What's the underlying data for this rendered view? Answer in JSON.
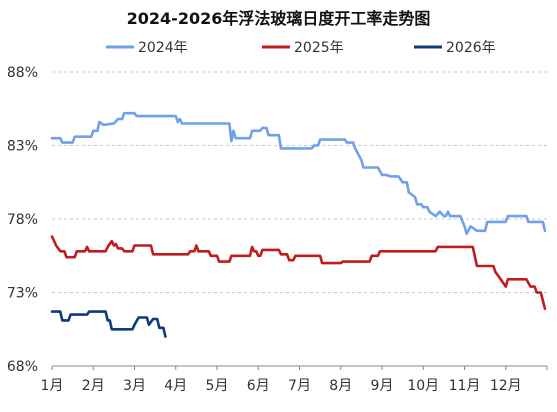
{
  "chart_data": {
    "type": "line",
    "title": "2024-2026年浮法玻璃日度开工率走势图",
    "x_ticks": [
      "1月",
      "2月",
      "3月",
      "4月",
      "5月",
      "6月",
      "7月",
      "8月",
      "9月",
      "10月",
      "11月",
      "12月"
    ],
    "y_ticks": [
      "68%",
      "73%",
      "78%",
      "83%",
      "88%"
    ],
    "ylim": [
      68,
      88
    ],
    "xlim": [
      1,
      13
    ],
    "grid": "horizontal dashed",
    "legend": "top",
    "series": [
      {
        "name": "2024年",
        "color": "#6fa1e8",
        "points": [
          [
            1.0,
            83.5
          ],
          [
            1.2,
            83.5
          ],
          [
            1.25,
            83.2
          ],
          [
            1.5,
            83.2
          ],
          [
            1.55,
            83.6
          ],
          [
            1.95,
            83.6
          ],
          [
            2.0,
            84.0
          ],
          [
            2.1,
            84.0
          ],
          [
            2.15,
            84.6
          ],
          [
            2.25,
            84.4
          ],
          [
            2.5,
            84.5
          ],
          [
            2.6,
            84.8
          ],
          [
            2.7,
            84.8
          ],
          [
            2.75,
            85.2
          ],
          [
            3.0,
            85.2
          ],
          [
            3.05,
            85.0
          ],
          [
            4.0,
            85.0
          ],
          [
            4.05,
            84.6
          ],
          [
            4.1,
            84.8
          ],
          [
            4.15,
            84.5
          ],
          [
            5.3,
            84.5
          ],
          [
            5.35,
            83.3
          ],
          [
            5.4,
            84.0
          ],
          [
            5.45,
            83.5
          ],
          [
            5.8,
            83.5
          ],
          [
            5.85,
            84.0
          ],
          [
            6.05,
            84.0
          ],
          [
            6.1,
            84.2
          ],
          [
            6.2,
            84.2
          ],
          [
            6.25,
            83.7
          ],
          [
            6.5,
            83.7
          ],
          [
            6.55,
            82.8
          ],
          [
            7.3,
            82.8
          ],
          [
            7.35,
            83.0
          ],
          [
            7.45,
            83.0
          ],
          [
            7.5,
            83.4
          ],
          [
            8.1,
            83.4
          ],
          [
            8.15,
            83.2
          ],
          [
            8.3,
            83.2
          ],
          [
            8.35,
            82.8
          ],
          [
            8.5,
            82.0
          ],
          [
            8.55,
            81.5
          ],
          [
            8.9,
            81.5
          ],
          [
            9.0,
            81.0
          ],
          [
            9.1,
            81.0
          ],
          [
            9.2,
            80.9
          ],
          [
            9.4,
            80.9
          ],
          [
            9.5,
            80.5
          ],
          [
            9.6,
            80.5
          ],
          [
            9.65,
            79.8
          ],
          [
            9.8,
            79.5
          ],
          [
            9.85,
            79.0
          ],
          [
            9.95,
            79.0
          ],
          [
            10.0,
            78.8
          ],
          [
            10.1,
            78.8
          ],
          [
            10.15,
            78.5
          ],
          [
            10.3,
            78.2
          ],
          [
            10.4,
            78.5
          ],
          [
            10.5,
            78.2
          ],
          [
            10.55,
            78.2
          ],
          [
            10.6,
            78.5
          ],
          [
            10.65,
            78.2
          ],
          [
            10.9,
            78.2
          ],
          [
            11.0,
            77.5
          ],
          [
            11.05,
            77.0
          ],
          [
            11.15,
            77.5
          ],
          [
            11.3,
            77.2
          ],
          [
            11.5,
            77.2
          ],
          [
            11.55,
            77.8
          ],
          [
            12.0,
            77.8
          ],
          [
            12.05,
            78.2
          ],
          [
            12.5,
            78.2
          ],
          [
            12.55,
            77.8
          ],
          [
            12.9,
            77.8
          ],
          [
            12.95,
            77.2
          ]
        ]
      },
      {
        "name": "2025年",
        "color": "#c01c1c",
        "points": [
          [
            1.0,
            76.8
          ],
          [
            1.05,
            76.5
          ],
          [
            1.1,
            76.2
          ],
          [
            1.2,
            75.8
          ],
          [
            1.3,
            75.8
          ],
          [
            1.35,
            75.4
          ],
          [
            1.55,
            75.4
          ],
          [
            1.6,
            75.8
          ],
          [
            1.8,
            75.8
          ],
          [
            1.85,
            76.1
          ],
          [
            1.9,
            75.8
          ],
          [
            2.3,
            75.8
          ],
          [
            2.35,
            76.1
          ],
          [
            2.45,
            76.5
          ],
          [
            2.5,
            76.2
          ],
          [
            2.55,
            76.3
          ],
          [
            2.6,
            76.0
          ],
          [
            2.7,
            76.0
          ],
          [
            2.75,
            75.8
          ],
          [
            2.95,
            75.8
          ],
          [
            3.0,
            76.2
          ],
          [
            3.4,
            76.2
          ],
          [
            3.45,
            75.6
          ],
          [
            4.3,
            75.6
          ],
          [
            4.35,
            75.8
          ],
          [
            4.45,
            75.8
          ],
          [
            4.5,
            76.2
          ],
          [
            4.55,
            75.8
          ],
          [
            4.8,
            75.8
          ],
          [
            4.85,
            75.5
          ],
          [
            5.0,
            75.5
          ],
          [
            5.05,
            75.1
          ],
          [
            5.3,
            75.1
          ],
          [
            5.35,
            75.5
          ],
          [
            5.8,
            75.5
          ],
          [
            5.85,
            76.1
          ],
          [
            5.9,
            75.8
          ],
          [
            5.95,
            75.8
          ],
          [
            6.0,
            75.5
          ],
          [
            6.05,
            75.5
          ],
          [
            6.1,
            75.9
          ],
          [
            6.5,
            75.9
          ],
          [
            6.55,
            75.6
          ],
          [
            6.7,
            75.6
          ],
          [
            6.75,
            75.2
          ],
          [
            6.85,
            75.2
          ],
          [
            6.9,
            75.5
          ],
          [
            7.5,
            75.5
          ],
          [
            7.55,
            75.0
          ],
          [
            8.0,
            75.0
          ],
          [
            8.05,
            75.1
          ],
          [
            8.7,
            75.1
          ],
          [
            8.75,
            75.5
          ],
          [
            8.9,
            75.5
          ],
          [
            8.95,
            75.8
          ],
          [
            10.3,
            75.8
          ],
          [
            10.35,
            76.1
          ],
          [
            11.2,
            76.1
          ],
          [
            11.3,
            74.8
          ],
          [
            11.7,
            74.8
          ],
          [
            11.75,
            74.4
          ],
          [
            11.85,
            74.0
          ],
          [
            12.0,
            73.4
          ],
          [
            12.05,
            73.9
          ],
          [
            12.5,
            73.9
          ],
          [
            12.6,
            73.4
          ],
          [
            12.7,
            73.4
          ],
          [
            12.75,
            73.0
          ],
          [
            12.85,
            73.0
          ],
          [
            12.95,
            71.9
          ]
        ]
      },
      {
        "name": "2026年",
        "color": "#0e3a7e",
        "points": [
          [
            1.0,
            71.7
          ],
          [
            1.2,
            71.7
          ],
          [
            1.25,
            71.1
          ],
          [
            1.4,
            71.1
          ],
          [
            1.45,
            71.5
          ],
          [
            1.85,
            71.5
          ],
          [
            1.9,
            71.7
          ],
          [
            2.3,
            71.7
          ],
          [
            2.35,
            71.1
          ],
          [
            2.4,
            71.1
          ],
          [
            2.45,
            70.5
          ],
          [
            2.95,
            70.5
          ],
          [
            3.0,
            70.8
          ],
          [
            3.1,
            71.3
          ],
          [
            3.3,
            71.3
          ],
          [
            3.35,
            70.8
          ],
          [
            3.45,
            71.2
          ],
          [
            3.55,
            71.2
          ],
          [
            3.6,
            70.6
          ],
          [
            3.7,
            70.6
          ],
          [
            3.75,
            70.0
          ]
        ]
      }
    ]
  }
}
